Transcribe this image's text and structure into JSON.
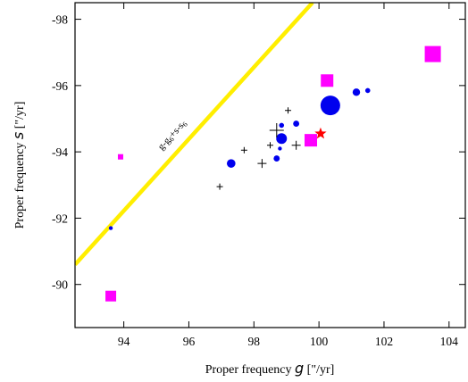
{
  "chart_data": {
    "type": "scatter",
    "xlabel_prefix": "Proper frequency ",
    "xlabel_symbol": "g",
    "xlabel_unit": " [\"/yr]",
    "ylabel_prefix": "Proper frequency ",
    "ylabel_symbol": "s",
    "ylabel_unit": " [\"/yr]",
    "xlim": [
      92.5,
      104.5
    ],
    "ylim": [
      -88.7,
      -98.5
    ],
    "x_ticks": [
      94,
      96,
      98,
      100,
      102,
      104
    ],
    "y_ticks": [
      -90,
      -92,
      -94,
      -96,
      -98
    ],
    "resonance_line": {
      "label": "g-g6+s-s6",
      "color": "#ffee00",
      "points": [
        [
          92.5,
          -90.6
        ],
        [
          99.8,
          -98.5
        ]
      ]
    },
    "series": [
      {
        "marker": "circle",
        "color": "#0000ee",
        "points": [
          {
            "x": 100.35,
            "y": -95.4,
            "size": 11
          },
          {
            "x": 98.85,
            "y": -94.4,
            "size": 6
          },
          {
            "x": 97.3,
            "y": -93.65,
            "size": 4.8
          },
          {
            "x": 101.15,
            "y": -95.8,
            "size": 4.2
          },
          {
            "x": 99.3,
            "y": -94.85,
            "size": 3.4
          },
          {
            "x": 98.7,
            "y": -93.8,
            "size": 3.4
          },
          {
            "x": 101.5,
            "y": -95.85,
            "size": 2.8
          },
          {
            "x": 98.85,
            "y": -94.8,
            "size": 2.8
          },
          {
            "x": 98.8,
            "y": -94.1,
            "size": 2.2
          },
          {
            "x": 93.6,
            "y": -91.7,
            "size": 2.2
          }
        ]
      },
      {
        "marker": "square",
        "color": "#ff00ff",
        "points": [
          {
            "x": 103.5,
            "y": -96.95,
            "size": 9
          },
          {
            "x": 100.25,
            "y": -96.15,
            "size": 7
          },
          {
            "x": 99.75,
            "y": -94.35,
            "size": 7
          },
          {
            "x": 93.6,
            "y": -89.65,
            "size": 6
          },
          {
            "x": 93.9,
            "y": -93.85,
            "size": 3
          }
        ]
      },
      {
        "marker": "plus",
        "color": "#000000",
        "points": [
          {
            "x": 98.7,
            "y": -94.65,
            "size": 8
          },
          {
            "x": 99.3,
            "y": -94.2,
            "size": 5
          },
          {
            "x": 98.25,
            "y": -93.65,
            "size": 5
          },
          {
            "x": 99.05,
            "y": -95.25,
            "size": 3.5
          },
          {
            "x": 97.7,
            "y": -94.05,
            "size": 3.5
          },
          {
            "x": 98.5,
            "y": -94.2,
            "size": 3.5
          },
          {
            "x": 96.95,
            "y": -92.95,
            "size": 3.5
          }
        ]
      },
      {
        "marker": "star",
        "color": "#ff0000",
        "points": [
          {
            "x": 100.05,
            "y": -94.55,
            "size": 7
          }
        ]
      }
    ]
  }
}
